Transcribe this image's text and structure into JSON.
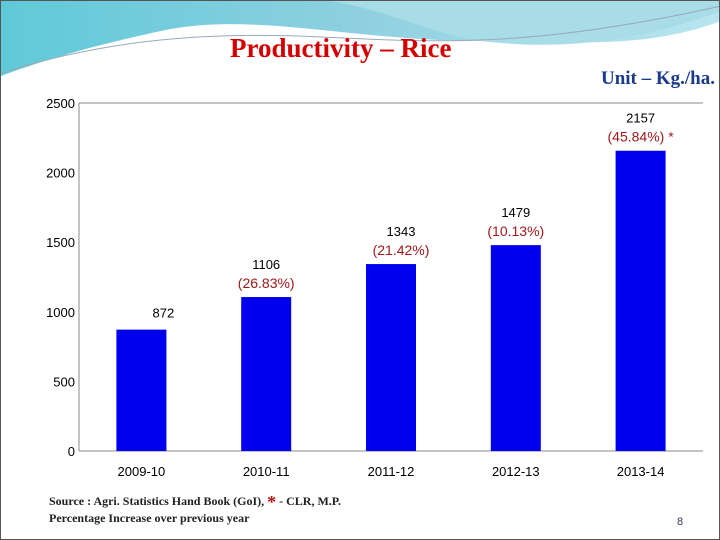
{
  "title": "Productivity – Rice",
  "unit": "Unit – Kg./ha.",
  "footer": {
    "source": "Source : Agri. Statistics Hand Book (GoI),",
    "star": "*",
    "star_note": "- CLR, M.P.",
    "note": "Percentage Increase over previous year"
  },
  "page_number": "8",
  "colors": {
    "bar": "#0000ee",
    "pct": "#a01818",
    "title": "#d40000"
  },
  "chart_data": {
    "type": "bar",
    "title": "Productivity – Rice",
    "categories": [
      "2009-10",
      "2010-11",
      "2011-12",
      "2012-13",
      "2013-14"
    ],
    "values": [
      872,
      1106,
      1343,
      1479,
      2157
    ],
    "value_labels": [
      "872",
      "1106",
      "1343",
      "1479",
      "2157"
    ],
    "pct_labels": [
      "",
      "(26.83%)",
      "(21.42%)",
      "(10.13%)",
      "(45.84%) *"
    ],
    "ylim": [
      0,
      2500
    ],
    "yticks": [
      0,
      500,
      1000,
      1500,
      2000,
      2500
    ],
    "xlabel": "",
    "ylabel": "Kg./ha."
  }
}
